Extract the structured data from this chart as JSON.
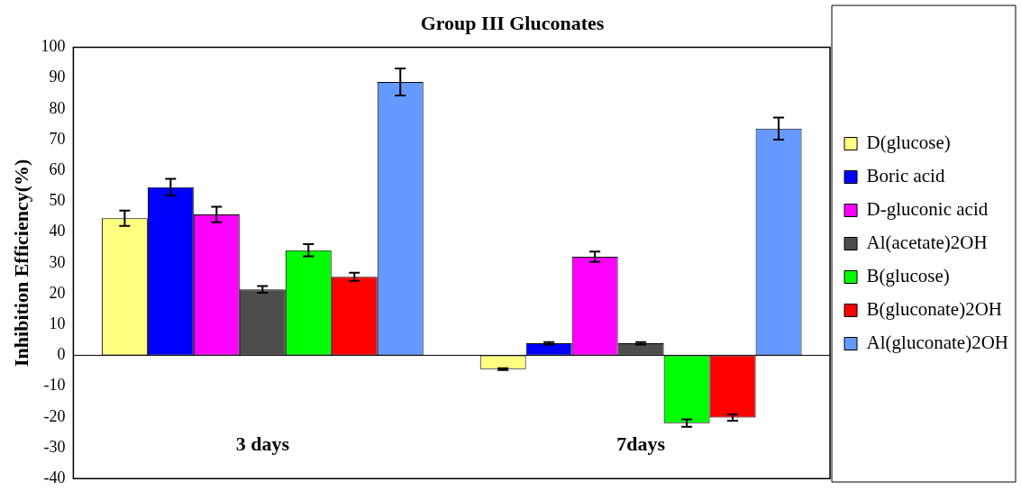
{
  "chart_data": {
    "type": "bar",
    "title": "Group III Gluconates",
    "ylabel": "Inhibition Efficiency(%)",
    "categories": [
      "3 days",
      "7days"
    ],
    "ylim": [
      -40,
      100
    ],
    "yticks": [
      -40,
      -30,
      -20,
      -10,
      0,
      10,
      20,
      30,
      40,
      50,
      60,
      70,
      80,
      90,
      100
    ],
    "legend": "right",
    "series": [
      {
        "name": "D(glucose)",
        "color": "#ffff80",
        "values": [
          44.5,
          -4.5
        ],
        "errors": [
          2.5,
          0.3
        ]
      },
      {
        "name": "Boric acid",
        "color": "#0000ff",
        "values": [
          54.6,
          3.9
        ],
        "errors": [
          2.7,
          0.4
        ]
      },
      {
        "name": "D-gluconic acid",
        "color": "#ff00ff",
        "values": [
          45.7,
          32
        ],
        "errors": [
          2.5,
          1.7
        ]
      },
      {
        "name": "Al(acetate)2OH",
        "color": "#4d4d4d",
        "values": [
          21.4,
          3.9
        ],
        "errors": [
          1.1,
          0.4
        ]
      },
      {
        "name": "B(glucose)",
        "color": "#00ff00",
        "values": [
          34.1,
          -22
        ],
        "errors": [
          2,
          1.2
        ]
      },
      {
        "name": "B(gluconate)2OH",
        "color": "#ff0000",
        "values": [
          25.5,
          -20.2
        ],
        "errors": [
          1.3,
          1
        ]
      },
      {
        "name": "Al(gluconate)2OH",
        "color": "#6699ff",
        "values": [
          88.7,
          73.6
        ],
        "errors": [
          4.4,
          3.6
        ]
      }
    ]
  }
}
